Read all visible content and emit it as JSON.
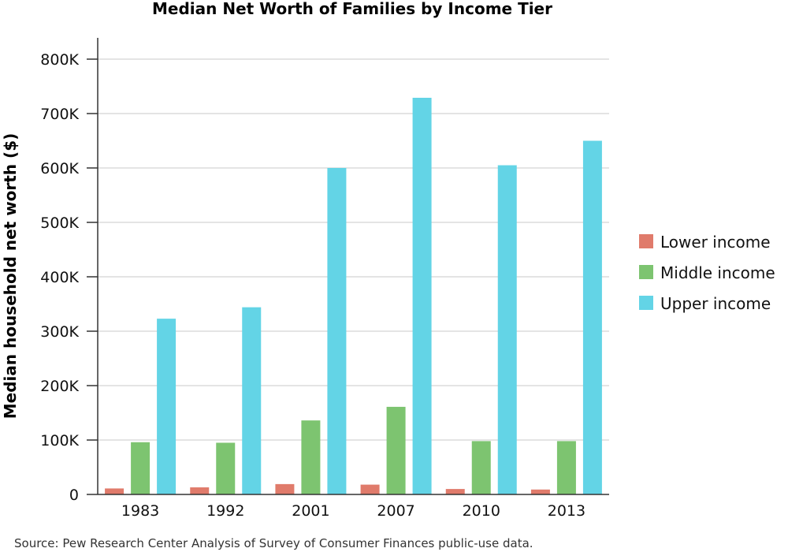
{
  "chart_data": {
    "type": "bar",
    "title": "Median Net Worth of Families by Income Tier",
    "ylabel": "Median household net worth ($)",
    "xlabel": "",
    "categories": [
      "1983",
      "1992",
      "2001",
      "2007",
      "2010",
      "2013"
    ],
    "ylim": [
      0,
      800000
    ],
    "yticks": [
      0,
      100000,
      200000,
      300000,
      400000,
      500000,
      600000,
      700000,
      800000
    ],
    "ytick_labels": [
      "0",
      "100K",
      "200K",
      "300K",
      "400K",
      "500K",
      "600K",
      "700K",
      "800K"
    ],
    "series": [
      {
        "name": "Lower income",
        "color": "#e07b6b",
        "values": [
          11000,
          13000,
          19000,
          18000,
          10000,
          9000
        ]
      },
      {
        "name": "Middle income",
        "color": "#7dc470",
        "values": [
          96000,
          95000,
          136000,
          161000,
          98000,
          98000
        ]
      },
      {
        "name": "Upper income",
        "color": "#63d4e6",
        "values": [
          323000,
          344000,
          600000,
          729000,
          605000,
          650000
        ]
      }
    ],
    "grid": true,
    "legend_position": "right",
    "source": "Source: Pew Research Center Analysis of Survey of Consumer Finances public-use data."
  }
}
